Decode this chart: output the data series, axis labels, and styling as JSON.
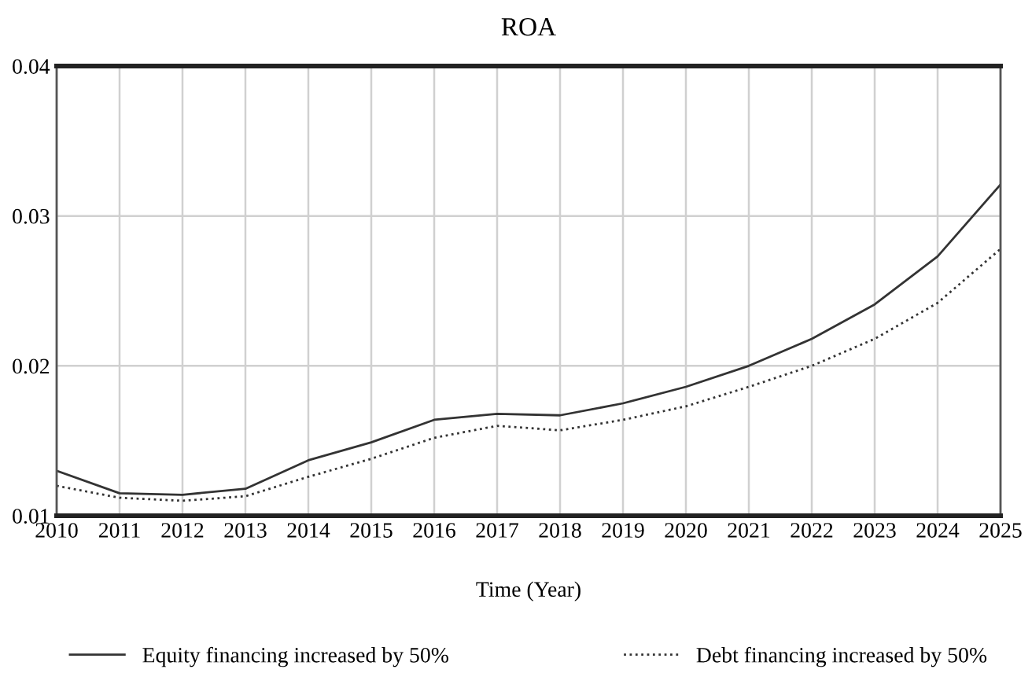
{
  "chart_data": {
    "type": "line",
    "title": "ROA",
    "xlabel": "Time (Year)",
    "x": [
      2010,
      2011,
      2012,
      2013,
      2014,
      2015,
      2016,
      2017,
      2018,
      2019,
      2020,
      2021,
      2022,
      2023,
      2024,
      2025
    ],
    "series": [
      {
        "name": "Equity financing increased by 50%",
        "color": "#333333",
        "line_style": "solid",
        "values": [
          0.013,
          0.0115,
          0.0114,
          0.0118,
          0.0137,
          0.0149,
          0.0164,
          0.0168,
          0.0167,
          0.0175,
          0.0186,
          0.02,
          0.0218,
          0.0241,
          0.0273,
          0.0321
        ]
      },
      {
        "name": "Debt financing increased by 50%",
        "color": "#333333",
        "line_style": "dotted",
        "values": [
          0.012,
          0.0112,
          0.011,
          0.0113,
          0.0126,
          0.0138,
          0.0152,
          0.016,
          0.0157,
          0.0164,
          0.0173,
          0.0186,
          0.02,
          0.0218,
          0.0242,
          0.0278
        ]
      }
    ],
    "xlim": [
      2010,
      2025
    ],
    "xticks": [
      2010,
      2011,
      2012,
      2013,
      2014,
      2015,
      2016,
      2017,
      2018,
      2019,
      2020,
      2021,
      2022,
      2023,
      2024,
      2025
    ],
    "ylim": [
      0.01,
      0.04
    ],
    "yticks": [
      0.01,
      0.02,
      0.03,
      0.04
    ],
    "grid": true,
    "legend": "bottom",
    "marker": "none"
  }
}
